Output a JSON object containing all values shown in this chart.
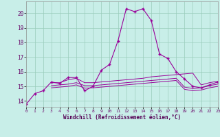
{
  "xlabel": "Windchill (Refroidissement éolien,°C)",
  "bg_color": "#c8eee8",
  "line_color": "#990099",
  "grid_color": "#99ccbb",
  "xlim": [
    0,
    23
  ],
  "ylim": [
    13.6,
    20.8
  ],
  "xticks": [
    0,
    1,
    2,
    3,
    4,
    5,
    6,
    7,
    8,
    9,
    10,
    11,
    12,
    13,
    14,
    15,
    16,
    17,
    18,
    19,
    20,
    21,
    22,
    23
  ],
  "yticks": [
    14,
    15,
    16,
    17,
    18,
    19,
    20
  ],
  "line_main_x": [
    0,
    1,
    2,
    3,
    4,
    5,
    6,
    7,
    8,
    9,
    10,
    11,
    12,
    13,
    14,
    15,
    16,
    17,
    18,
    19,
    20,
    21,
    22,
    23
  ],
  "line_main_y": [
    13.8,
    14.5,
    14.7,
    15.3,
    15.2,
    15.6,
    15.6,
    14.7,
    15.0,
    16.1,
    16.5,
    18.1,
    20.3,
    20.1,
    20.3,
    19.5,
    17.2,
    16.9,
    16.0,
    15.5,
    15.0,
    14.9,
    15.1,
    15.3
  ],
  "line_flat1_x": [
    3,
    4,
    5,
    6,
    7,
    8,
    9,
    10,
    11,
    12,
    13,
    14,
    15,
    16,
    17,
    18,
    19,
    20,
    21,
    22,
    23
  ],
  "line_flat1_y": [
    15.25,
    15.25,
    15.45,
    15.55,
    15.25,
    15.25,
    15.3,
    15.35,
    15.4,
    15.45,
    15.5,
    15.55,
    15.65,
    15.7,
    15.75,
    15.8,
    15.85,
    15.9,
    15.1,
    15.25,
    15.35
  ],
  "line_flat2_x": [
    3,
    4,
    5,
    6,
    7,
    8,
    9,
    10,
    11,
    12,
    13,
    14,
    15,
    16,
    17,
    18,
    19,
    20,
    21,
    22,
    23
  ],
  "line_flat2_y": [
    15.05,
    15.1,
    15.15,
    15.25,
    15.05,
    15.05,
    15.1,
    15.15,
    15.2,
    15.25,
    15.3,
    15.35,
    15.4,
    15.45,
    15.5,
    15.55,
    14.95,
    14.85,
    14.9,
    15.05,
    15.15
  ],
  "line_flat3_x": [
    3,
    4,
    5,
    6,
    7,
    8,
    9,
    10,
    11,
    12,
    13,
    14,
    15,
    16,
    17,
    18,
    19,
    20,
    21,
    22,
    23
  ],
  "line_flat3_y": [
    14.9,
    14.95,
    15.0,
    15.1,
    14.88,
    14.9,
    14.95,
    15.0,
    15.05,
    15.1,
    15.15,
    15.2,
    15.25,
    15.3,
    15.35,
    15.4,
    14.8,
    14.7,
    14.75,
    14.9,
    15.0
  ]
}
